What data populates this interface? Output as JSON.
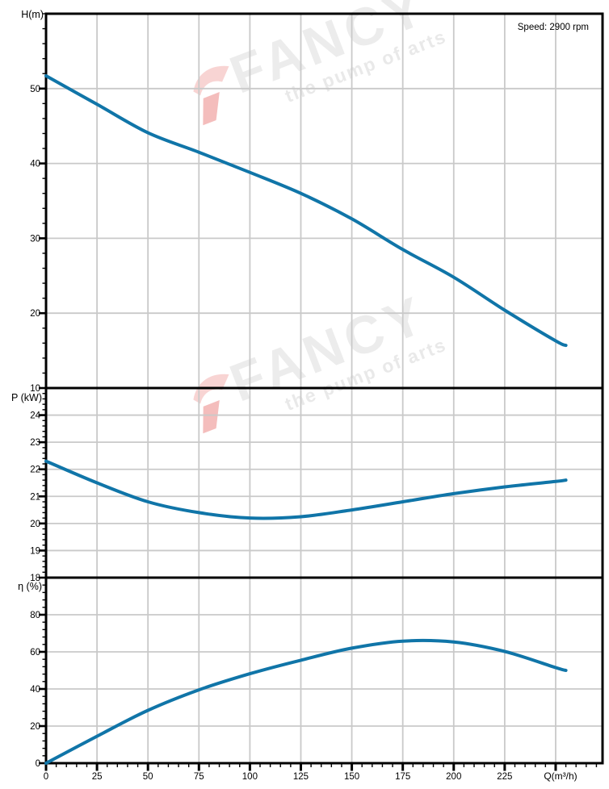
{
  "window": {
    "speed_annotation": "Speed: 2900 rpm"
  },
  "watermark": {
    "brand": "FANCY",
    "tagline": "the pump of arts"
  },
  "colors": {
    "curve": "#1075a8",
    "grid": "#c9c9c9",
    "axis": "#000000",
    "text": "#000000",
    "watermark_text": "#ececec",
    "watermark_logo_light": "#f8d4d3",
    "watermark_logo_dark": "#f4bdbc"
  },
  "x_axis": {
    "xlabel": "Q(m³/h)",
    "xlim": [
      0,
      273
    ],
    "xticks": [
      0,
      25,
      50,
      75,
      100,
      125,
      150,
      175,
      200,
      225,
      250
    ],
    "xtick_labels": [
      "0",
      "25",
      "50",
      "75",
      "100",
      "125",
      "150",
      "175",
      "200",
      "225",
      ""
    ],
    "minor_x_step": 5,
    "grid": true
  },
  "chart_data": [
    {
      "type": "line",
      "panel": "head",
      "title": "",
      "ylabel": "H(m)",
      "ylim": [
        10,
        60
      ],
      "yticks": [
        10,
        20,
        30,
        40,
        50
      ],
      "ytick_labels": [
        "10",
        "20",
        "30",
        "40",
        "50"
      ],
      "minor_y_step": 2,
      "series": [
        {
          "name": "head-vs-flow",
          "x": [
            0,
            25,
            50,
            75,
            100,
            125,
            150,
            175,
            200,
            225,
            250,
            255
          ],
          "y": [
            51.7,
            47.9,
            44.1,
            41.5,
            38.8,
            36.0,
            32.6,
            28.5,
            24.8,
            20.4,
            16.3,
            15.7
          ]
        }
      ]
    },
    {
      "type": "line",
      "panel": "power",
      "title": "",
      "ylabel": "P (kW)",
      "ylim": [
        18,
        25
      ],
      "yticks": [
        18,
        19,
        20,
        21,
        22,
        23,
        24
      ],
      "ytick_labels": [
        "18",
        "19",
        "20",
        "21",
        "22",
        "23",
        "24"
      ],
      "minor_y_step": 0.2,
      "series": [
        {
          "name": "power-vs-flow",
          "x": [
            0,
            25,
            50,
            75,
            100,
            125,
            150,
            175,
            200,
            225,
            250,
            255
          ],
          "y": [
            22.3,
            21.5,
            20.8,
            20.4,
            20.2,
            20.25,
            20.5,
            20.8,
            21.1,
            21.35,
            21.55,
            21.6
          ]
        }
      ]
    },
    {
      "type": "line",
      "panel": "efficiency",
      "title": "",
      "ylabel": "η (%)",
      "ylim": [
        0,
        100
      ],
      "yticks": [
        0,
        20,
        40,
        60,
        80
      ],
      "ytick_labels": [
        "0",
        "20",
        "40",
        "60",
        "80"
      ],
      "minor_y_step": 4,
      "series": [
        {
          "name": "efficiency-vs-flow",
          "x": [
            0,
            25,
            50,
            75,
            100,
            125,
            150,
            175,
            200,
            225,
            250,
            255
          ],
          "y": [
            0,
            14.5,
            28.5,
            39.5,
            48.2,
            55.5,
            62.0,
            65.8,
            65.3,
            60.2,
            51.5,
            50.0
          ]
        }
      ]
    }
  ]
}
